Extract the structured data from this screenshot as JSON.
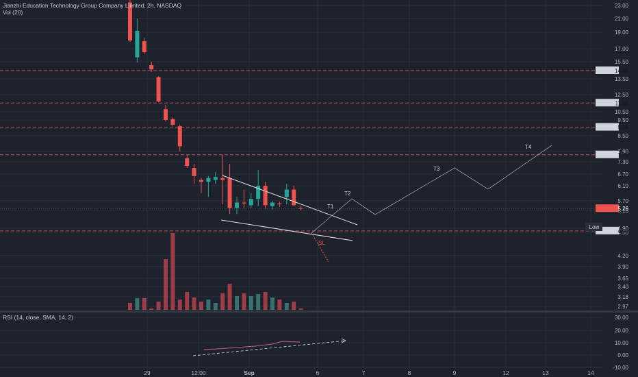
{
  "header": {
    "title": "Jianzhi Education Technology Group Company Limited, 2h, NASDAQ",
    "volume_label": "Vol (20)",
    "rsi_label": "RSI (14, close, SMA, 14, 2)"
  },
  "colors": {
    "background": "#1e222d",
    "grid": "#2a2e39",
    "up": "#26a69a",
    "down": "#ef5350",
    "level": "#c8505a",
    "drawing": "#e3e3e3",
    "rsi_line": "#c95f86"
  },
  "chart_data": {
    "type": "candlestick",
    "title": "Jianzhi Education Technology Group Company Limited, 2h, NASDAQ",
    "price_axis_ticks": [
      "23.00",
      "21.00",
      "19.00",
      "17.00",
      "15.50",
      "13.50",
      "12.50",
      "10.50",
      "9.50",
      "8.50",
      "7.90",
      "7.30",
      "6.70",
      "6.10",
      "5.70",
      "5.15",
      "4.90",
      "4.50",
      "4.20",
      "3.90",
      "3.65",
      "3.40",
      "3.18",
      "2.97"
    ],
    "time_axis_ticks": [
      "29",
      "12:00",
      "Sep",
      "6",
      "7",
      "8",
      "9",
      "12",
      "13",
      "14"
    ],
    "horizontal_levels": [
      {
        "price": 14.46,
        "label": "14.46"
      },
      {
        "price": 11.52,
        "label": "11.52"
      },
      {
        "price": 9.04,
        "label": "9.04"
      },
      {
        "price": 7.71,
        "label": "7.71"
      },
      {
        "price": 4.64,
        "label": "4.64"
      }
    ],
    "last_price": {
      "price": 5.26,
      "label": "5.26"
    },
    "low_label": "Low",
    "candles": [
      {
        "o": 23.5,
        "h": 24,
        "l": 17.8,
        "c": 18.0,
        "v": 1.0
      },
      {
        "o": 16.0,
        "h": 21.0,
        "l": 15.4,
        "c": 19.2,
        "v": 1.7
      },
      {
        "o": 17.9,
        "h": 18.3,
        "l": 16.4,
        "c": 16.6,
        "v": 1.7
      },
      {
        "o": 15.1,
        "h": 15.5,
        "l": 14.3,
        "c": 14.6,
        "v": 0.2
      },
      {
        "o": 13.7,
        "h": 13.8,
        "l": 11.6,
        "c": 11.7,
        "v": 1.2
      },
      {
        "o": 10.8,
        "h": 11.3,
        "l": 9.4,
        "c": 9.5,
        "v": 7.4
      },
      {
        "o": 9.6,
        "h": 9.8,
        "l": 9.1,
        "c": 9.2,
        "v": 11.2
      },
      {
        "o": 9.1,
        "h": 9.2,
        "l": 7.9,
        "c": 8.1,
        "v": 1.5
      },
      {
        "o": 7.5,
        "h": 7.7,
        "l": 7.0,
        "c": 7.1,
        "v": 2.6
      },
      {
        "o": 7.0,
        "h": 7.2,
        "l": 6.2,
        "c": 6.6,
        "v": 1.8
      },
      {
        "o": 6.4,
        "h": 6.5,
        "l": 5.9,
        "c": 6.3,
        "v": 1.2
      },
      {
        "o": 6.3,
        "h": 6.6,
        "l": 5.8,
        "c": 6.5,
        "v": 1.5
      },
      {
        "o": 6.4,
        "h": 6.8,
        "l": 6.2,
        "c": 6.55,
        "v": 1.0
      },
      {
        "o": 6.5,
        "h": 7.7,
        "l": 5.5,
        "c": 6.4,
        "v": 2.4
      },
      {
        "o": 6.5,
        "h": 7.2,
        "l": 5.1,
        "c": 5.3,
        "v": 3.8
      },
      {
        "o": 5.3,
        "h": 5.8,
        "l": 5.1,
        "c": 5.6,
        "v": 2.0
      },
      {
        "o": 5.6,
        "h": 6.0,
        "l": 5.3,
        "c": 5.55,
        "v": 2.4
      },
      {
        "o": 5.45,
        "h": 5.9,
        "l": 5.3,
        "c": 5.75,
        "v": 2.0
      },
      {
        "o": 5.75,
        "h": 6.9,
        "l": 5.4,
        "c": 6.1,
        "v": 2.3
      },
      {
        "o": 6.1,
        "h": 6.3,
        "l": 5.25,
        "c": 5.45,
        "v": 2.6
      },
      {
        "o": 5.4,
        "h": 5.7,
        "l": 5.2,
        "c": 5.6,
        "v": 1.8
      },
      {
        "o": 5.55,
        "h": 5.65,
        "l": 5.35,
        "c": 5.5,
        "v": 1.5
      },
      {
        "o": 5.8,
        "h": 6.2,
        "l": 5.5,
        "c": 6.0,
        "v": 1.0
      },
      {
        "o": 6.0,
        "h": 6.1,
        "l": 5.4,
        "c": 5.45,
        "v": 1.2
      },
      {
        "o": 5.3,
        "h": 5.4,
        "l": 5.15,
        "c": 5.25,
        "v": 0.2
      }
    ],
    "pattern_labels": [
      "T1",
      "T2",
      "T3",
      "T4",
      "SL"
    ],
    "rsi_axis_ticks": [
      "30.00",
      "20.00",
      "10.00",
      "0.00",
      "-10.00"
    ]
  }
}
